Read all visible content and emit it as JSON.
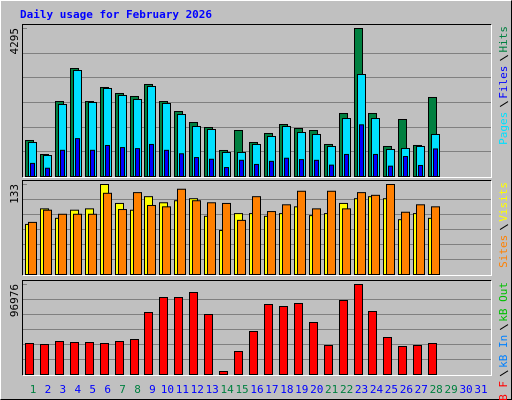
{
  "chart_data": [
    {
      "type": "bar",
      "title": "Daily usage for February 2026",
      "categories": [
        1,
        2,
        3,
        4,
        5,
        6,
        7,
        8,
        9,
        10,
        11,
        12,
        13,
        14,
        15,
        16,
        17,
        18,
        19,
        20,
        21,
        22,
        23,
        24,
        25,
        26,
        27,
        28,
        29,
        30,
        31
      ],
      "category_colors": [
        "#008040",
        "#0000ff",
        "#0000ff",
        "#0000ff",
        "#0000ff",
        "#0000ff",
        "#008040",
        "#008040",
        "#0000ff",
        "#0000ff",
        "#0000ff",
        "#0000ff",
        "#0000ff",
        "#008040",
        "#008040",
        "#0000ff",
        "#0000ff",
        "#0000ff",
        "#0000ff",
        "#0000ff",
        "#008040",
        "#008040",
        "#0000ff",
        "#0000ff",
        "#0000ff",
        "#0000ff",
        "#0000ff",
        "#008040",
        "#008040",
        "#0000ff",
        "#0000ff"
      ],
      "ylim": [
        0,
        4295
      ],
      "yticks": [
        4295
      ],
      "series": [
        {
          "name": "Pages",
          "color": "#00e0ff",
          "values": [
            987,
            609,
            2089,
            3076,
            2148,
            2554,
            2351,
            2235,
            2612,
            2119,
            1799,
            1451,
            1364,
            697,
            697,
            929,
            1161,
            1451,
            1277,
            1219,
            871,
            1683,
            2960,
            1683,
            784,
            813,
            871,
            1219,
            null,
            null,
            null
          ]
        },
        {
          "name": "Files",
          "color": "#0000ff",
          "values": [
            380,
            240,
            760,
            1100,
            760,
            900,
            840,
            810,
            930,
            760,
            660,
            550,
            500,
            260,
            470,
            350,
            440,
            530,
            490,
            470,
            330,
            640,
            1500,
            640,
            300,
            580,
            320,
            800,
            null,
            null,
            null
          ]
        },
        {
          "name": "Hits",
          "color": "#008040",
          "values": [
            1045,
            638,
            2176,
            3134,
            2176,
            2583,
            2409,
            2322,
            2670,
            2176,
            1886,
            1567,
            1422,
            755,
            1335,
            987,
            1248,
            1509,
            1393,
            1335,
            929,
            1828,
            4295,
            1828,
            871,
            1654,
            900,
            2293,
            null,
            null,
            null
          ]
        }
      ]
    },
    {
      "type": "bar",
      "ylim": [
        0,
        133
      ],
      "yticks": [
        133
      ],
      "series": [
        {
          "name": "Sites",
          "color": "#ff8000",
          "values": [
            77,
            95,
            89,
            89,
            89,
            120,
            96,
            121,
            102,
            100,
            126,
            109,
            106,
            105,
            80,
            115,
            93,
            103,
            123,
            97,
            123,
            97,
            121,
            117,
            133,
            92,
            103,
            100,
            null,
            null,
            null
          ]
        },
        {
          "name": "Visits",
          "color": "#ffff00",
          "values": [
            74,
            97,
            83,
            95,
            97,
            133,
            105,
            95,
            115,
            106,
            109,
            112,
            86,
            65,
            90,
            90,
            86,
            90,
            100,
            87,
            90,
            105,
            112,
            115,
            112,
            81,
            90,
            83,
            null,
            null,
            null
          ]
        }
      ]
    },
    {
      "type": "bar",
      "ylim": [
        0,
        96976
      ],
      "yticks": [
        96976
      ],
      "series": [
        {
          "name": "kB F",
          "color": "#ff0000",
          "values": [
            33403,
            32325,
            35557,
            34480,
            34480,
            33403,
            35557,
            37712,
            66806,
            82968,
            82968,
            88356,
            64651,
            3232,
            24783,
            46330,
            75426,
            73271,
            76503,
            56030,
            31247,
            79736,
            96976,
            67883,
            39867,
            30170,
            31247,
            33403,
            null,
            null,
            null
          ]
        },
        {
          "name": "kB In",
          "color": "#0080ff",
          "values": [
            null,
            null,
            null,
            null,
            null,
            null,
            null,
            null,
            null,
            null,
            null,
            null,
            null,
            null,
            null,
            null,
            null,
            null,
            null,
            null,
            null,
            null,
            null,
            null,
            null,
            null,
            null,
            null,
            null,
            null,
            null
          ]
        },
        {
          "name": "kB Out",
          "color": "#00c000",
          "values": [
            null,
            null,
            null,
            null,
            null,
            null,
            null,
            null,
            null,
            null,
            null,
            null,
            null,
            null,
            null,
            null,
            null,
            null,
            null,
            null,
            null,
            null,
            null,
            null,
            null,
            null,
            null,
            null,
            null,
            null,
            null
          ]
        }
      ]
    }
  ]
}
